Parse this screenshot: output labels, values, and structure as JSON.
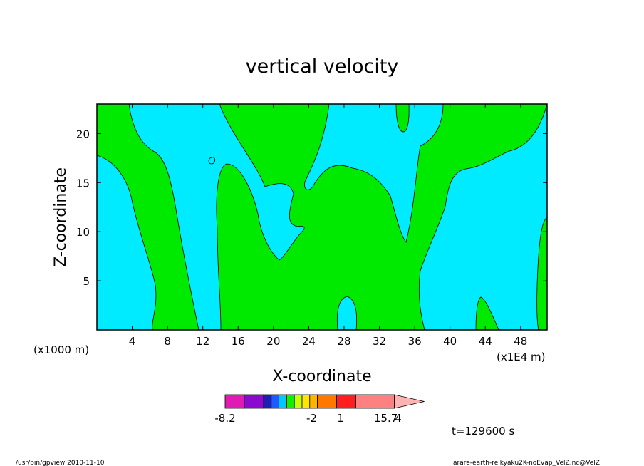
{
  "chart_data": {
    "type": "heatmap",
    "title": "vertical velocity",
    "xlabel": "X-coordinate",
    "ylabel": "Z-coordinate",
    "x_unit_left": "(x1000 m)",
    "x_unit_right": "(x1E4 m)",
    "xlim": [
      0,
      51
    ],
    "ylim": [
      0,
      23
    ],
    "x_ticks": [
      4,
      8,
      12,
      16,
      20,
      24,
      28,
      32,
      36,
      40,
      44,
      48
    ],
    "y_ticks": [
      5,
      10,
      15,
      20
    ],
    "colorbar": {
      "labels": [
        {
          "value": "-8.2",
          "pos": 0
        },
        {
          "value": "-2",
          "pos": 4.5
        },
        {
          "value": "1",
          "pos": 6
        },
        {
          "value": "4",
          "pos": 9
        }
      ],
      "max_label": "15.7",
      "colors": [
        "#e01ab4",
        "#8a0ad0",
        "#1e1eb4",
        "#1e5aff",
        "#00c8ff",
        "#10f000",
        "#c8ff00",
        "#ffe600",
        "#ffb400",
        "#ff7800",
        "#ff1e1e",
        "#ff8080"
      ],
      "widths": [
        1,
        1,
        0.4,
        0.4,
        0.4,
        0.4,
        0.4,
        0.4,
        0.4,
        1,
        1,
        2
      ]
    },
    "region_colors": {
      "positive": "#00ea00",
      "negative": "#00ebff"
    },
    "time_label": "t=129600 s"
  },
  "footer": {
    "left": "/usr/bin/gpview   2010-11-10",
    "right": "arare-earth-reikyaku2K-noEvap_VelZ.nc@VelZ"
  }
}
